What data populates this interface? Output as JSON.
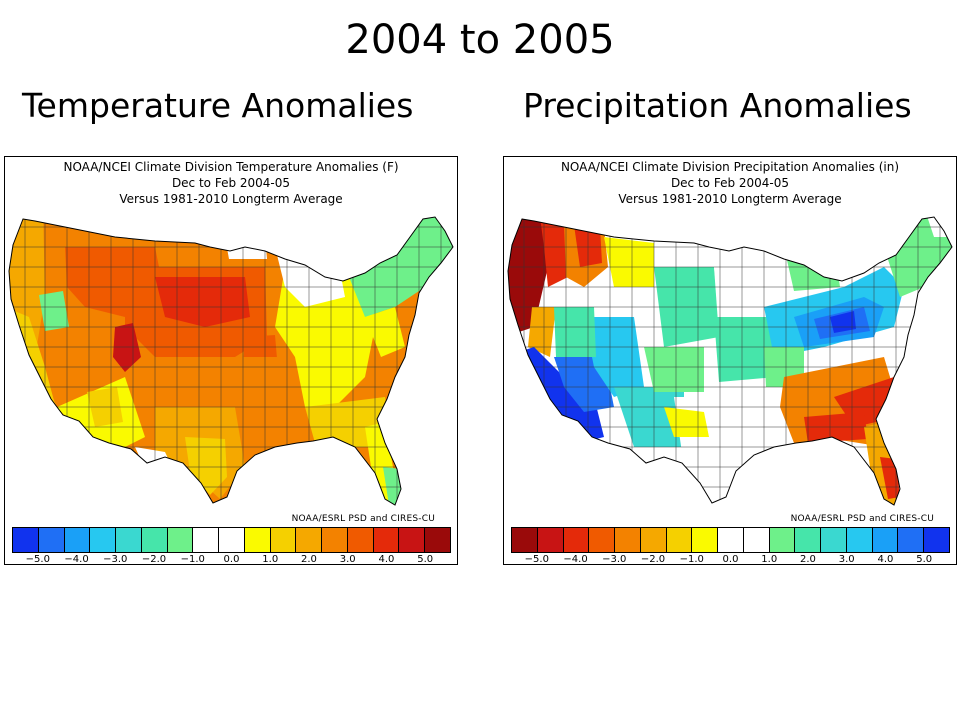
{
  "slide": {
    "title": "2004 to 2005",
    "left_heading": "Temperature Anomalies",
    "right_heading": "Precipitation Anomalies"
  },
  "temperature_map": {
    "header_line1": "NOAA/NCEI Climate Division Temperature Anomalies (F)",
    "header_line2": "Dec to Feb 2004-05",
    "header_line3": "Versus 1981-2010 Longterm Average",
    "credit": "NOAA/ESRL PSD and CIRES-CU",
    "legend_colors": [
      "#1133ee",
      "#1f6ff5",
      "#1aa0f7",
      "#27c8f0",
      "#3ad8d0",
      "#46e5aa",
      "#6ef08a",
      "#ffffff",
      "#ffffff",
      "#fafa00",
      "#f5d000",
      "#f5a800",
      "#f38200",
      "#f05a00",
      "#e42a0a",
      "#c81414",
      "#9a0a0a"
    ],
    "tick_labels": [
      "−5.0",
      "−4.0",
      "−3.0",
      "−2.0",
      "−1.0",
      "0.0",
      "1.0",
      "2.0",
      "3.0",
      "4.0",
      "5.0"
    ]
  },
  "precipitation_map": {
    "header_line1": "NOAA/NCEI Climate Division Precipitation Anomalies (in)",
    "header_line2": "Dec to Feb 2004-05",
    "header_line3": "Versus 1981-2010 Longterm Average",
    "credit": "NOAA/ESRL PSD and CIRES-CU",
    "legend_colors": [
      "#9a0a0a",
      "#c81414",
      "#e42a0a",
      "#f05a00",
      "#f38200",
      "#f5a800",
      "#f5d000",
      "#fafa00",
      "#ffffff",
      "#ffffff",
      "#6ef08a",
      "#46e5aa",
      "#3ad8d0",
      "#27c8f0",
      "#1aa0f7",
      "#1f6ff5",
      "#1133ee"
    ],
    "tick_labels": [
      "−5.0",
      "−4.0",
      "−3.0",
      "−2.0",
      "−1.0",
      "0.0",
      "1.0",
      "2.0",
      "3.0",
      "4.0",
      "5.0"
    ]
  }
}
